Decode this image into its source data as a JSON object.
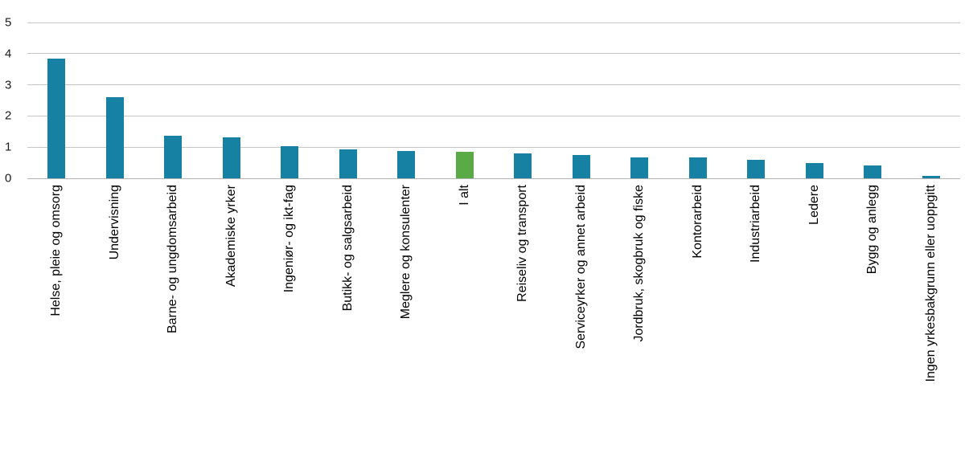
{
  "chart_data": {
    "type": "bar",
    "title": "",
    "xlabel": "",
    "ylabel": "",
    "categories": [
      "Helse, pleie og omsorg",
      "Undervisning",
      "Barne- og ungdomsarbeid",
      "Akademiske yrker",
      "Ingeniør- og ikt-fag",
      "Butikk- og salgsarbeid",
      "Meglere og konsulenter",
      "I alt",
      "Reiseliv og transport",
      "Serviceyrker og annet arbeid",
      "Jordbruk, skogbruk og fiske",
      "Kontorarbeid",
      "Industriarbeid",
      "Ledere",
      "Bygg og anlegg",
      "Ingen yrkesbakgrunn eller uoppgitt"
    ],
    "values": [
      3.85,
      2.6,
      1.37,
      1.31,
      1.03,
      0.92,
      0.88,
      0.84,
      0.8,
      0.75,
      0.68,
      0.68,
      0.6,
      0.5,
      0.41,
      0.08
    ],
    "highlight_index": 7,
    "highlight_category": "I alt",
    "bar_color": "#1681a3",
    "highlight_color": "#5aab46",
    "ylim": [
      0,
      5
    ],
    "yticks": [
      0,
      1,
      2,
      3,
      4,
      5
    ],
    "grid": "horizontal",
    "legend": "none",
    "x_tick_rotation": 90
  }
}
